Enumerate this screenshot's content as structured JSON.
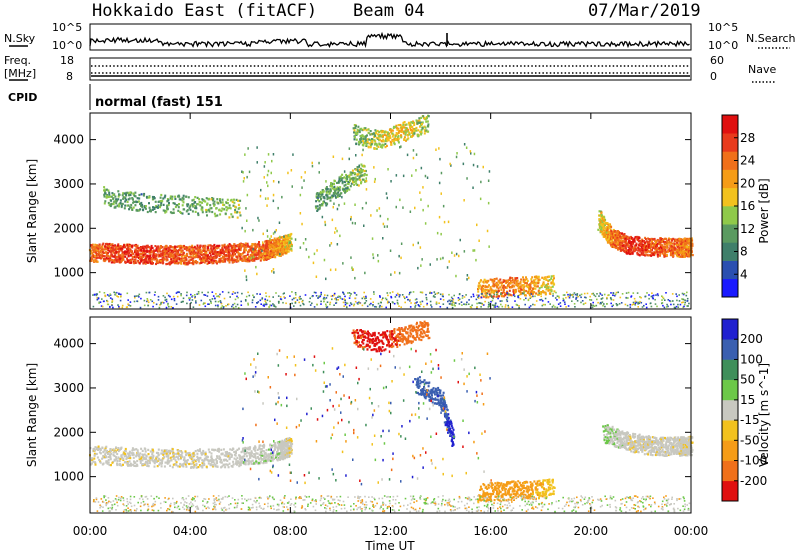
{
  "header": {
    "station": "Hokkaido East (fitACF)",
    "beam": "Beam 04",
    "date": "07/Mar/2019"
  },
  "noise_panel": {
    "left_label": "N.Sky",
    "right_label": "N.Search",
    "top_tick": "10^5",
    "bottom_tick": "10^0"
  },
  "freq_panel": {
    "left_label_1": "Freq.",
    "left_label_2": "[MHz]",
    "left_top_tick": "18",
    "left_bottom_tick": "8",
    "right_label": "Nave",
    "right_top_tick": "60",
    "right_bottom_tick": "0"
  },
  "cpid_panel": {
    "label": "CPID",
    "value": "normal (fast) 151"
  },
  "power_panel": {
    "ylabel": "Slant Range [km]",
    "yticks": [
      "1000",
      "2000",
      "3000",
      "4000"
    ],
    "colorbar_label": "Power [dB]",
    "colorbar_ticks": [
      "4",
      "8",
      "12",
      "16",
      "20",
      "24",
      "28"
    ],
    "colors": [
      "#1a1aff",
      "#2a4fb0",
      "#3f7f6a",
      "#5a9a60",
      "#8fc94a",
      "#f2c21e",
      "#f59c17",
      "#f0701a",
      "#e83a1c",
      "#e01010"
    ]
  },
  "velocity_panel": {
    "ylabel": "Slant Range [km]",
    "yticks": [
      "1000",
      "2000",
      "3000",
      "4000"
    ],
    "colorbar_label": "Velocity [m s^-1]",
    "colorbar_ticks": [
      "-200",
      "-100",
      "-50",
      "-15",
      "15",
      "50",
      "100",
      "200"
    ],
    "colors": [
      "#e01010",
      "#f0701a",
      "#f59c17",
      "#f2c21e",
      "#c8c8c0",
      "#6cc848",
      "#3f8f5a",
      "#3a5fb0",
      "#2020d0"
    ]
  },
  "x_axis": {
    "ticks": [
      "00:00",
      "04:00",
      "08:00",
      "12:00",
      "16:00",
      "20:00",
      "00:00"
    ],
    "label": "Time UT"
  },
  "chart_data": [
    {
      "type": "heatmap",
      "title": "Power [dB]",
      "xlabel": "Time UT",
      "ylabel": "Slant Range [km]",
      "xlim": [
        0,
        24
      ],
      "ylim": [
        180,
        4600
      ],
      "clim": [
        0,
        32
      ],
      "series": [
        {
          "x": [
            0,
            1,
            2,
            3,
            4,
            5,
            6,
            7,
            7.5,
            8
          ],
          "y": [
            1480,
            1460,
            1440,
            1420,
            1420,
            1440,
            1470,
            1520,
            1600,
            1700
          ],
          "values": [
            24,
            27,
            28,
            26,
            25,
            27,
            26,
            24,
            22,
            18
          ]
        },
        {
          "x": [
            20.3,
            20.8,
            21.5,
            22.5,
            23.5,
            24
          ],
          "y": [
            2200,
            1820,
            1640,
            1600,
            1580,
            1600
          ],
          "values": [
            16,
            22,
            28,
            26,
            24,
            22
          ]
        },
        {
          "x": [
            0.5,
            2,
            4,
            6
          ],
          "y": [
            2750,
            2600,
            2550,
            2450
          ],
          "values": [
            12,
            10,
            12,
            14
          ]
        },
        {
          "x": [
            9,
            10,
            11
          ],
          "y": [
            2600,
            3000,
            3300
          ],
          "values": [
            10,
            12,
            14
          ]
        },
        {
          "x": [
            10.5,
            11.5,
            12.5,
            13.5
          ],
          "y": [
            4150,
            4000,
            4200,
            4400
          ],
          "values": [
            12,
            16,
            18,
            14
          ]
        },
        {
          "x": [
            15.5,
            16.5,
            17.5,
            18.5
          ],
          "y": [
            650,
            700,
            720,
            760
          ],
          "values": [
            20,
            24,
            22,
            16
          ]
        }
      ]
    },
    {
      "type": "heatmap",
      "title": "Velocity [m s^-1]",
      "xlabel": "Time UT",
      "ylabel": "Slant Range [km]",
      "xlim": [
        0,
        24
      ],
      "ylim": [
        180,
        4600
      ],
      "clim": [
        -250,
        250
      ],
      "series": [
        {
          "x": [
            0,
            2,
            4,
            6,
            7.5,
            8
          ],
          "y": [
            1500,
            1460,
            1430,
            1450,
            1600,
            1700
          ],
          "values": [
            -5,
            -5,
            -5,
            0,
            5,
            -10
          ]
        },
        {
          "x": [
            20.5,
            21.5,
            22.5,
            23.5,
            24
          ],
          "y": [
            2000,
            1800,
            1700,
            1700,
            1720
          ],
          "values": [
            20,
            -5,
            -5,
            0,
            -5
          ]
        },
        {
          "x": [
            10.5,
            11.5,
            12.5,
            13.5
          ],
          "y": [
            4150,
            4050,
            4200,
            4350
          ],
          "values": [
            -200,
            -220,
            -180,
            -150
          ]
        },
        {
          "x": [
            15.5,
            16.5,
            17.5,
            18.5
          ],
          "y": [
            650,
            700,
            720,
            760
          ],
          "values": [
            -60,
            -80,
            -60,
            -30
          ]
        },
        {
          "x": [
            13,
            14,
            14.5
          ],
          "y": [
            3100,
            2800,
            1800
          ],
          "values": [
            150,
            180,
            220
          ]
        }
      ]
    }
  ]
}
